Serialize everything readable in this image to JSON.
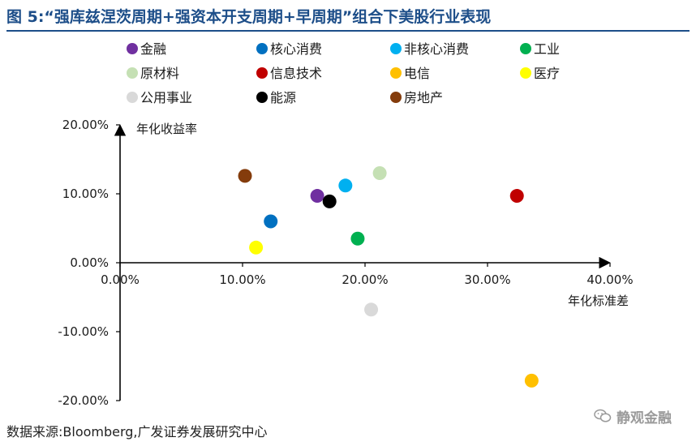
{
  "title": "图 5:“强库兹涅茨周期+强资本开支周期+早周期”组合下美股行业表现",
  "source": "数据来源:Bloomberg,广发证券发展研究中心",
  "watermark": "静观金融",
  "chart_data": {
    "type": "scatter",
    "xlabel": "年化标准差",
    "ylabel": "年化收益率",
    "xlim": [
      0,
      0.4
    ],
    "ylim": [
      -0.2,
      0.2
    ],
    "x_ticks": [
      "0.00%",
      "10.00%",
      "20.00%",
      "30.00%",
      "40.00%"
    ],
    "x_tick_values": [
      0,
      0.1,
      0.2,
      0.3,
      0.4
    ],
    "y_ticks": [
      "20.00%",
      "10.00%",
      "0.00%",
      "-10.00%",
      "-20.00%"
    ],
    "y_tick_values": [
      0.2,
      0.1,
      0,
      -0.1,
      -0.2
    ],
    "legend_position": "top",
    "series": [
      {
        "name": "金融",
        "color": "#7030a0",
        "x": 0.161,
        "y": 0.097
      },
      {
        "name": "核心消费",
        "color": "#0070c0",
        "x": 0.123,
        "y": 0.06
      },
      {
        "name": "非核心消费",
        "color": "#00b0f0",
        "x": 0.184,
        "y": 0.112
      },
      {
        "name": "工业",
        "color": "#00b050",
        "x": 0.194,
        "y": 0.035
      },
      {
        "name": "原材料",
        "color": "#c5e0b4",
        "x": 0.212,
        "y": 0.13
      },
      {
        "name": "信息技术",
        "color": "#c00000",
        "x": 0.324,
        "y": 0.097
      },
      {
        "name": "电信",
        "color": "#ffc000",
        "x": 0.336,
        "y": -0.171
      },
      {
        "name": "医疗",
        "color": "#ffff00",
        "x": 0.111,
        "y": 0.022
      },
      {
        "name": "公用事业",
        "color": "#d9d9d9",
        "x": 0.205,
        "y": -0.068
      },
      {
        "name": "能源",
        "color": "#000000",
        "x": 0.171,
        "y": 0.089
      },
      {
        "name": "房地产",
        "color": "#843c0c",
        "x": 0.102,
        "y": 0.126
      }
    ]
  }
}
